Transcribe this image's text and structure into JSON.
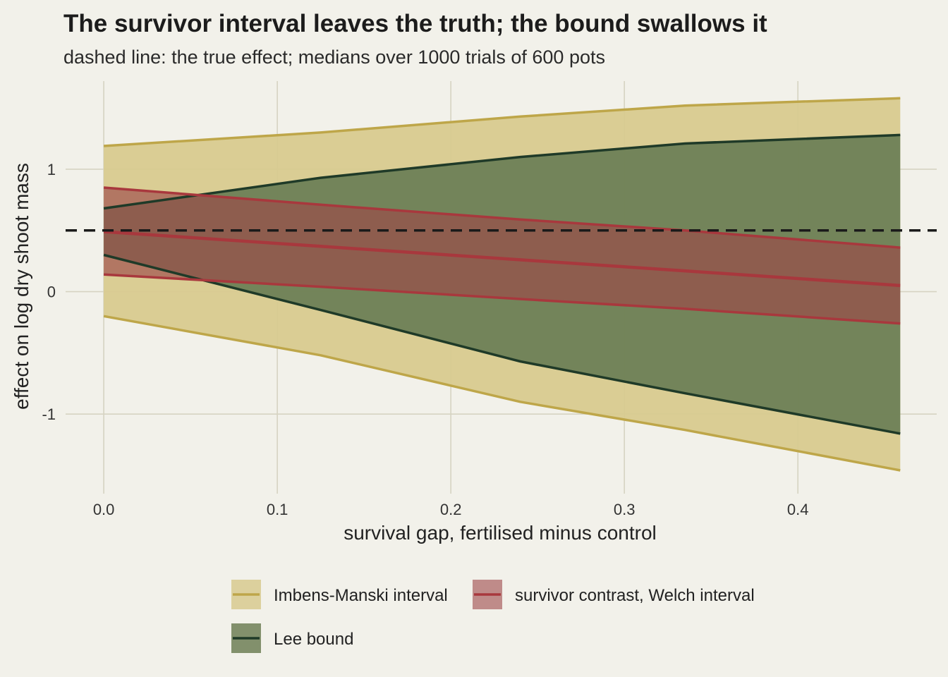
{
  "chart_data": {
    "type": "area",
    "title": "The survivor interval leaves the truth; the bound swallows it",
    "subtitle": "dashed line: the true effect; medians over 1000 trials of 600 pots",
    "xlabel": "survival gap, fertilised minus control",
    "ylabel": "effect on log dry shoot mass",
    "xlim": [
      -0.022,
      0.48
    ],
    "ylim": [
      -1.65,
      1.72
    ],
    "x_ticks": [
      0.0,
      0.1,
      0.2,
      0.3,
      0.4
    ],
    "x_tick_labels": [
      "0.0",
      "0.1",
      "0.2",
      "0.3",
      "0.4"
    ],
    "y_ticks": [
      -1,
      0,
      1
    ],
    "y_tick_labels": [
      "-1",
      "0",
      "1"
    ],
    "grid": true,
    "legend_position": "bottom",
    "true_effect": 0.5,
    "x": [
      0.0,
      0.125,
      0.24,
      0.335,
      0.459
    ],
    "series": [
      {
        "name": "Imbens-Manski interval",
        "fill": "#d8ca8f",
        "line": "#bea649",
        "lower": [
          -0.2,
          -0.52,
          -0.9,
          -1.13,
          -1.46
        ],
        "upper": [
          1.19,
          1.3,
          1.43,
          1.52,
          1.58
        ]
      },
      {
        "name": "Lee bound",
        "fill": "#6e7f56",
        "line": "#1f3a28",
        "lower": [
          0.3,
          -0.15,
          -0.57,
          -0.83,
          -1.16
        ],
        "upper": [
          0.68,
          0.93,
          1.1,
          1.21,
          1.28
        ]
      },
      {
        "name": "survivor contrast, Welch interval",
        "fill": "#9c4848",
        "line": "#a8383d",
        "lower": [
          0.14,
          0.04,
          -0.06,
          -0.14,
          -0.26
        ],
        "estimate": [
          0.49,
          0.37,
          0.26,
          0.17,
          0.05
        ],
        "upper": [
          0.85,
          0.71,
          0.59,
          0.5,
          0.36
        ]
      }
    ]
  }
}
